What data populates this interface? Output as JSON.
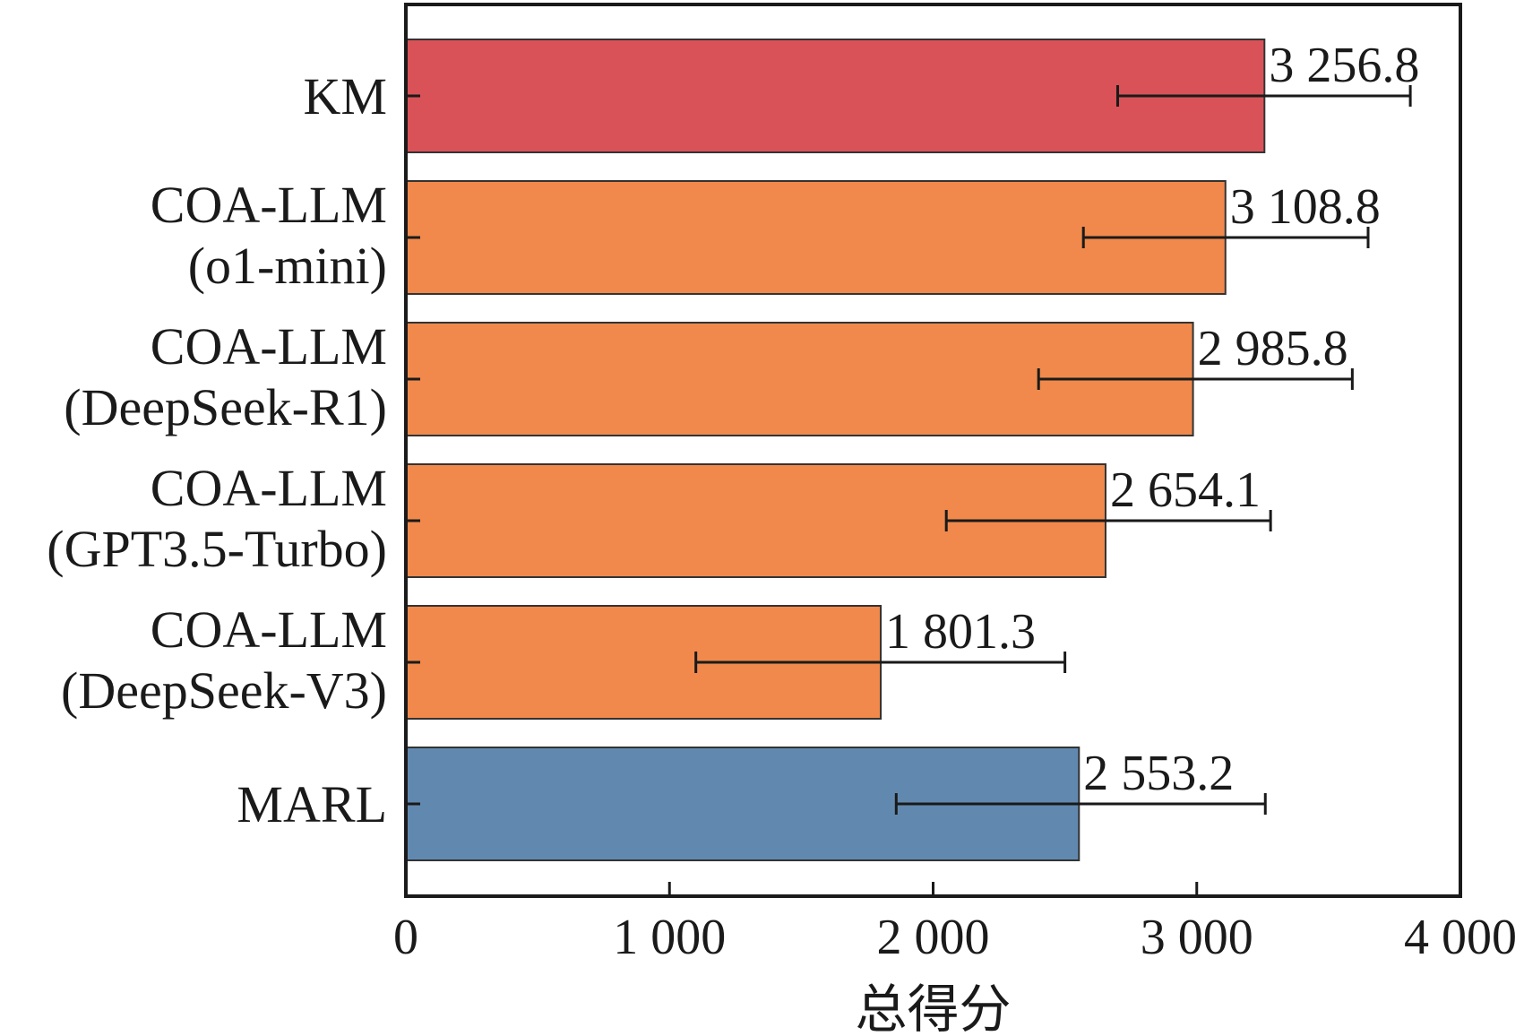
{
  "chart_data": {
    "type": "bar",
    "orientation": "horizontal",
    "categories": [
      [
        "KM"
      ],
      [
        "COA-LLM",
        "(o1-mini)"
      ],
      [
        "COA-LLM",
        "(DeepSeek-R1)"
      ],
      [
        "COA-LLM",
        "(GPT3.5-Turbo)"
      ],
      [
        "COA-LLM",
        "(DeepSeek-V3)"
      ],
      [
        "MARL"
      ]
    ],
    "values": [
      3256.8,
      3108.8,
      2985.8,
      2654.1,
      1801.3,
      2553.2
    ],
    "value_labels": [
      "3 256.8",
      "3 108.8",
      "2 985.8",
      "2 654.1",
      "1 801.3",
      "2 553.2"
    ],
    "error_low": [
      2700,
      2570,
      2400,
      2050,
      1100,
      1860
    ],
    "error_high": [
      3810,
      3650,
      3590,
      3280,
      2500,
      3260
    ],
    "bar_colors": [
      "#d95257",
      "#f0894b",
      "#f0894b",
      "#f0894b",
      "#f0894b",
      "#6189b0"
    ],
    "xlim": [
      0,
      4000
    ],
    "xticks": [
      0,
      1000,
      2000,
      3000,
      4000
    ],
    "xtick_labels": [
      "0",
      "1 000",
      "2 000",
      "3 000",
      "4 000"
    ],
    "xlabel": "总得分",
    "ylabel": "",
    "title": "",
    "grid": false,
    "legend": "none"
  }
}
